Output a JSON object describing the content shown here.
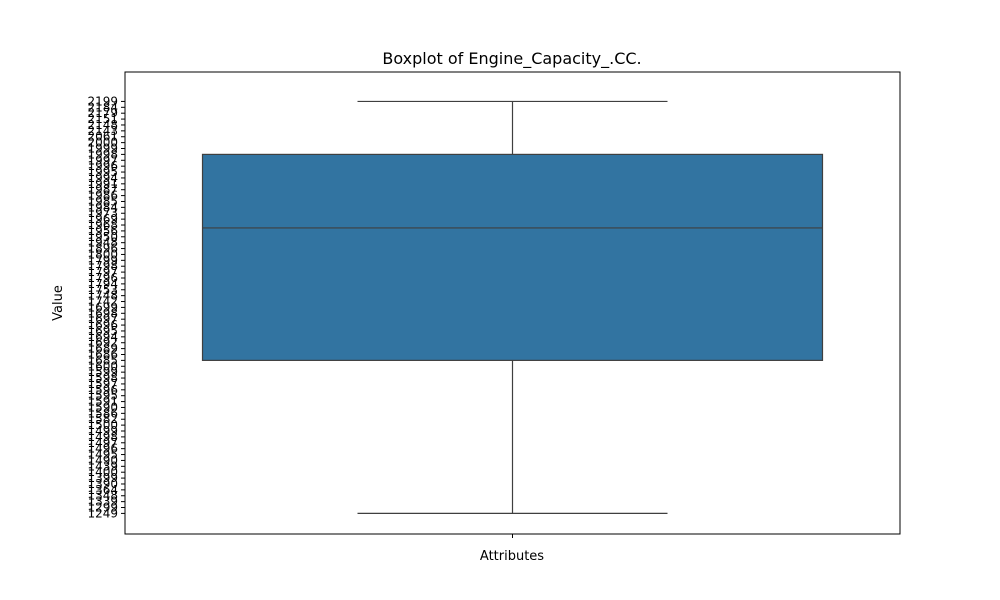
{
  "chart_data": {
    "type": "box",
    "title": "Boxplot of Engine_Capacity_.CC.",
    "xlabel": "Attributes",
    "ylabel": "Value",
    "categories": [
      ""
    ],
    "series": [
      {
        "whisker_low": 0,
        "q1": 26,
        "median": 48.5,
        "q3": 61,
        "whisker_high": 70
      }
    ],
    "ylim": [
      -3.5,
      75
    ],
    "ytick_labels": [
      "1249",
      "1299",
      "1339",
      "1348",
      "1364",
      "1390",
      "1399",
      "1400",
      "1439",
      "1490",
      "1495",
      "1496",
      "1497",
      "1498",
      "1499",
      "1500",
      "1582",
      "1586",
      "1590",
      "1591",
      "1595",
      "1596",
      "1597",
      "1598",
      "1599",
      "1600",
      "1685",
      "1686",
      "1689",
      "1692",
      "1694",
      "1695",
      "1696",
      "1697",
      "1698",
      "1699",
      "1742",
      "1748",
      "1753",
      "1794",
      "1796",
      "1797",
      "1798",
      "1799",
      "1800",
      "1896",
      "1948",
      "1950",
      "1956",
      "1968",
      "1969",
      "1973",
      "1984",
      "1985",
      "1986",
      "1987",
      "1991",
      "1994",
      "1995",
      "1996",
      "1997",
      "1998",
      "1999",
      "2000",
      "2061",
      "2143",
      "2148",
      "2151",
      "2179",
      "2184",
      "2199"
    ],
    "grid": false,
    "legend": "none",
    "box_color": "#3274a1",
    "line_color": "#3f3f3f"
  }
}
